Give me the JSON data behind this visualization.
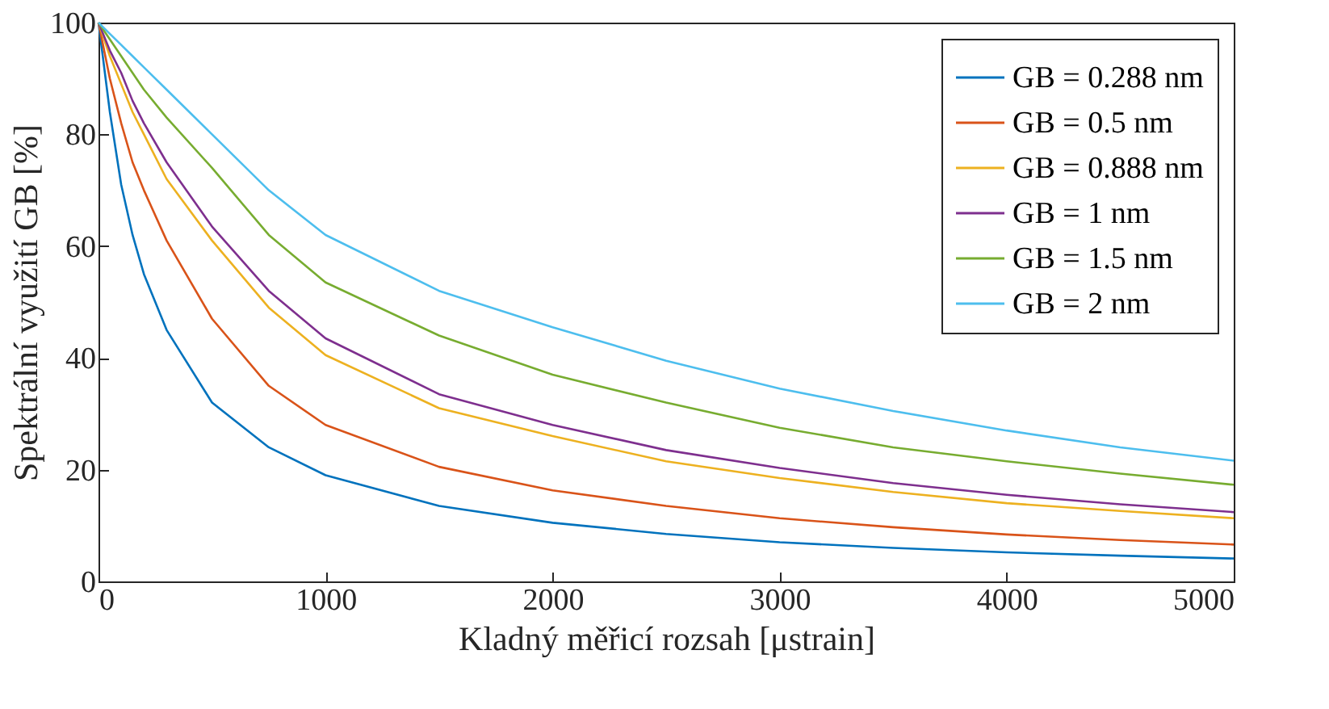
{
  "chart_data": {
    "type": "line",
    "xlabel": "Kladný měřicí rozsah [μstrain]",
    "ylabel": "Spektrální využití GB [%]",
    "x": [
      0,
      50,
      100,
      150,
      200,
      300,
      500,
      750,
      1000,
      1500,
      2000,
      2500,
      3000,
      3500,
      4000,
      4500,
      5000
    ],
    "series": [
      {
        "name": "GB = 0.288 nm",
        "color": "#0072bd",
        "values": [
          100,
          84,
          71,
          62,
          55,
          45,
          32,
          24,
          19,
          13.5,
          10.5,
          8.5,
          7,
          6,
          5.2,
          4.6,
          4.1
        ]
      },
      {
        "name": "GB = 0.5 nm",
        "color": "#d95319",
        "values": [
          100,
          90,
          82,
          75,
          70,
          61,
          47,
          35,
          28,
          20.5,
          16.3,
          13.5,
          11.3,
          9.7,
          8.4,
          7.4,
          6.6
        ]
      },
      {
        "name": "GB = 0.888 nm",
        "color": "#edb120",
        "values": [
          100,
          94,
          89,
          84,
          80,
          72,
          61,
          49,
          40.5,
          31,
          26,
          21.5,
          18.5,
          16,
          14,
          12.6,
          11.3
        ]
      },
      {
        "name": "GB = 1 nm",
        "color": "#7e2f8e",
        "values": [
          100,
          95,
          91,
          86,
          82,
          75,
          63.5,
          52,
          43.5,
          33.5,
          28,
          23.5,
          20.3,
          17.6,
          15.5,
          13.8,
          12.4
        ]
      },
      {
        "name": "GB = 1.5 nm",
        "color": "#77ac30",
        "values": [
          100,
          97,
          94,
          91,
          88,
          83,
          74,
          62,
          53.5,
          44,
          37,
          32,
          27.5,
          24,
          21.5,
          19.3,
          17.3
        ]
      },
      {
        "name": "GB = 2 nm",
        "color": "#4dbeee",
        "values": [
          100,
          98,
          96,
          94,
          92,
          88,
          80,
          70,
          62,
          52,
          45.5,
          39.5,
          34.5,
          30.5,
          27,
          24,
          21.6
        ]
      }
    ],
    "xlim": [
      0,
      5000
    ],
    "xticks": [
      0,
      1000,
      2000,
      3000,
      4000,
      5000
    ],
    "ylim": [
      0,
      100
    ],
    "yticks": [
      0,
      20,
      40,
      60,
      80,
      100
    ],
    "grid": false,
    "legend": "top right"
  }
}
